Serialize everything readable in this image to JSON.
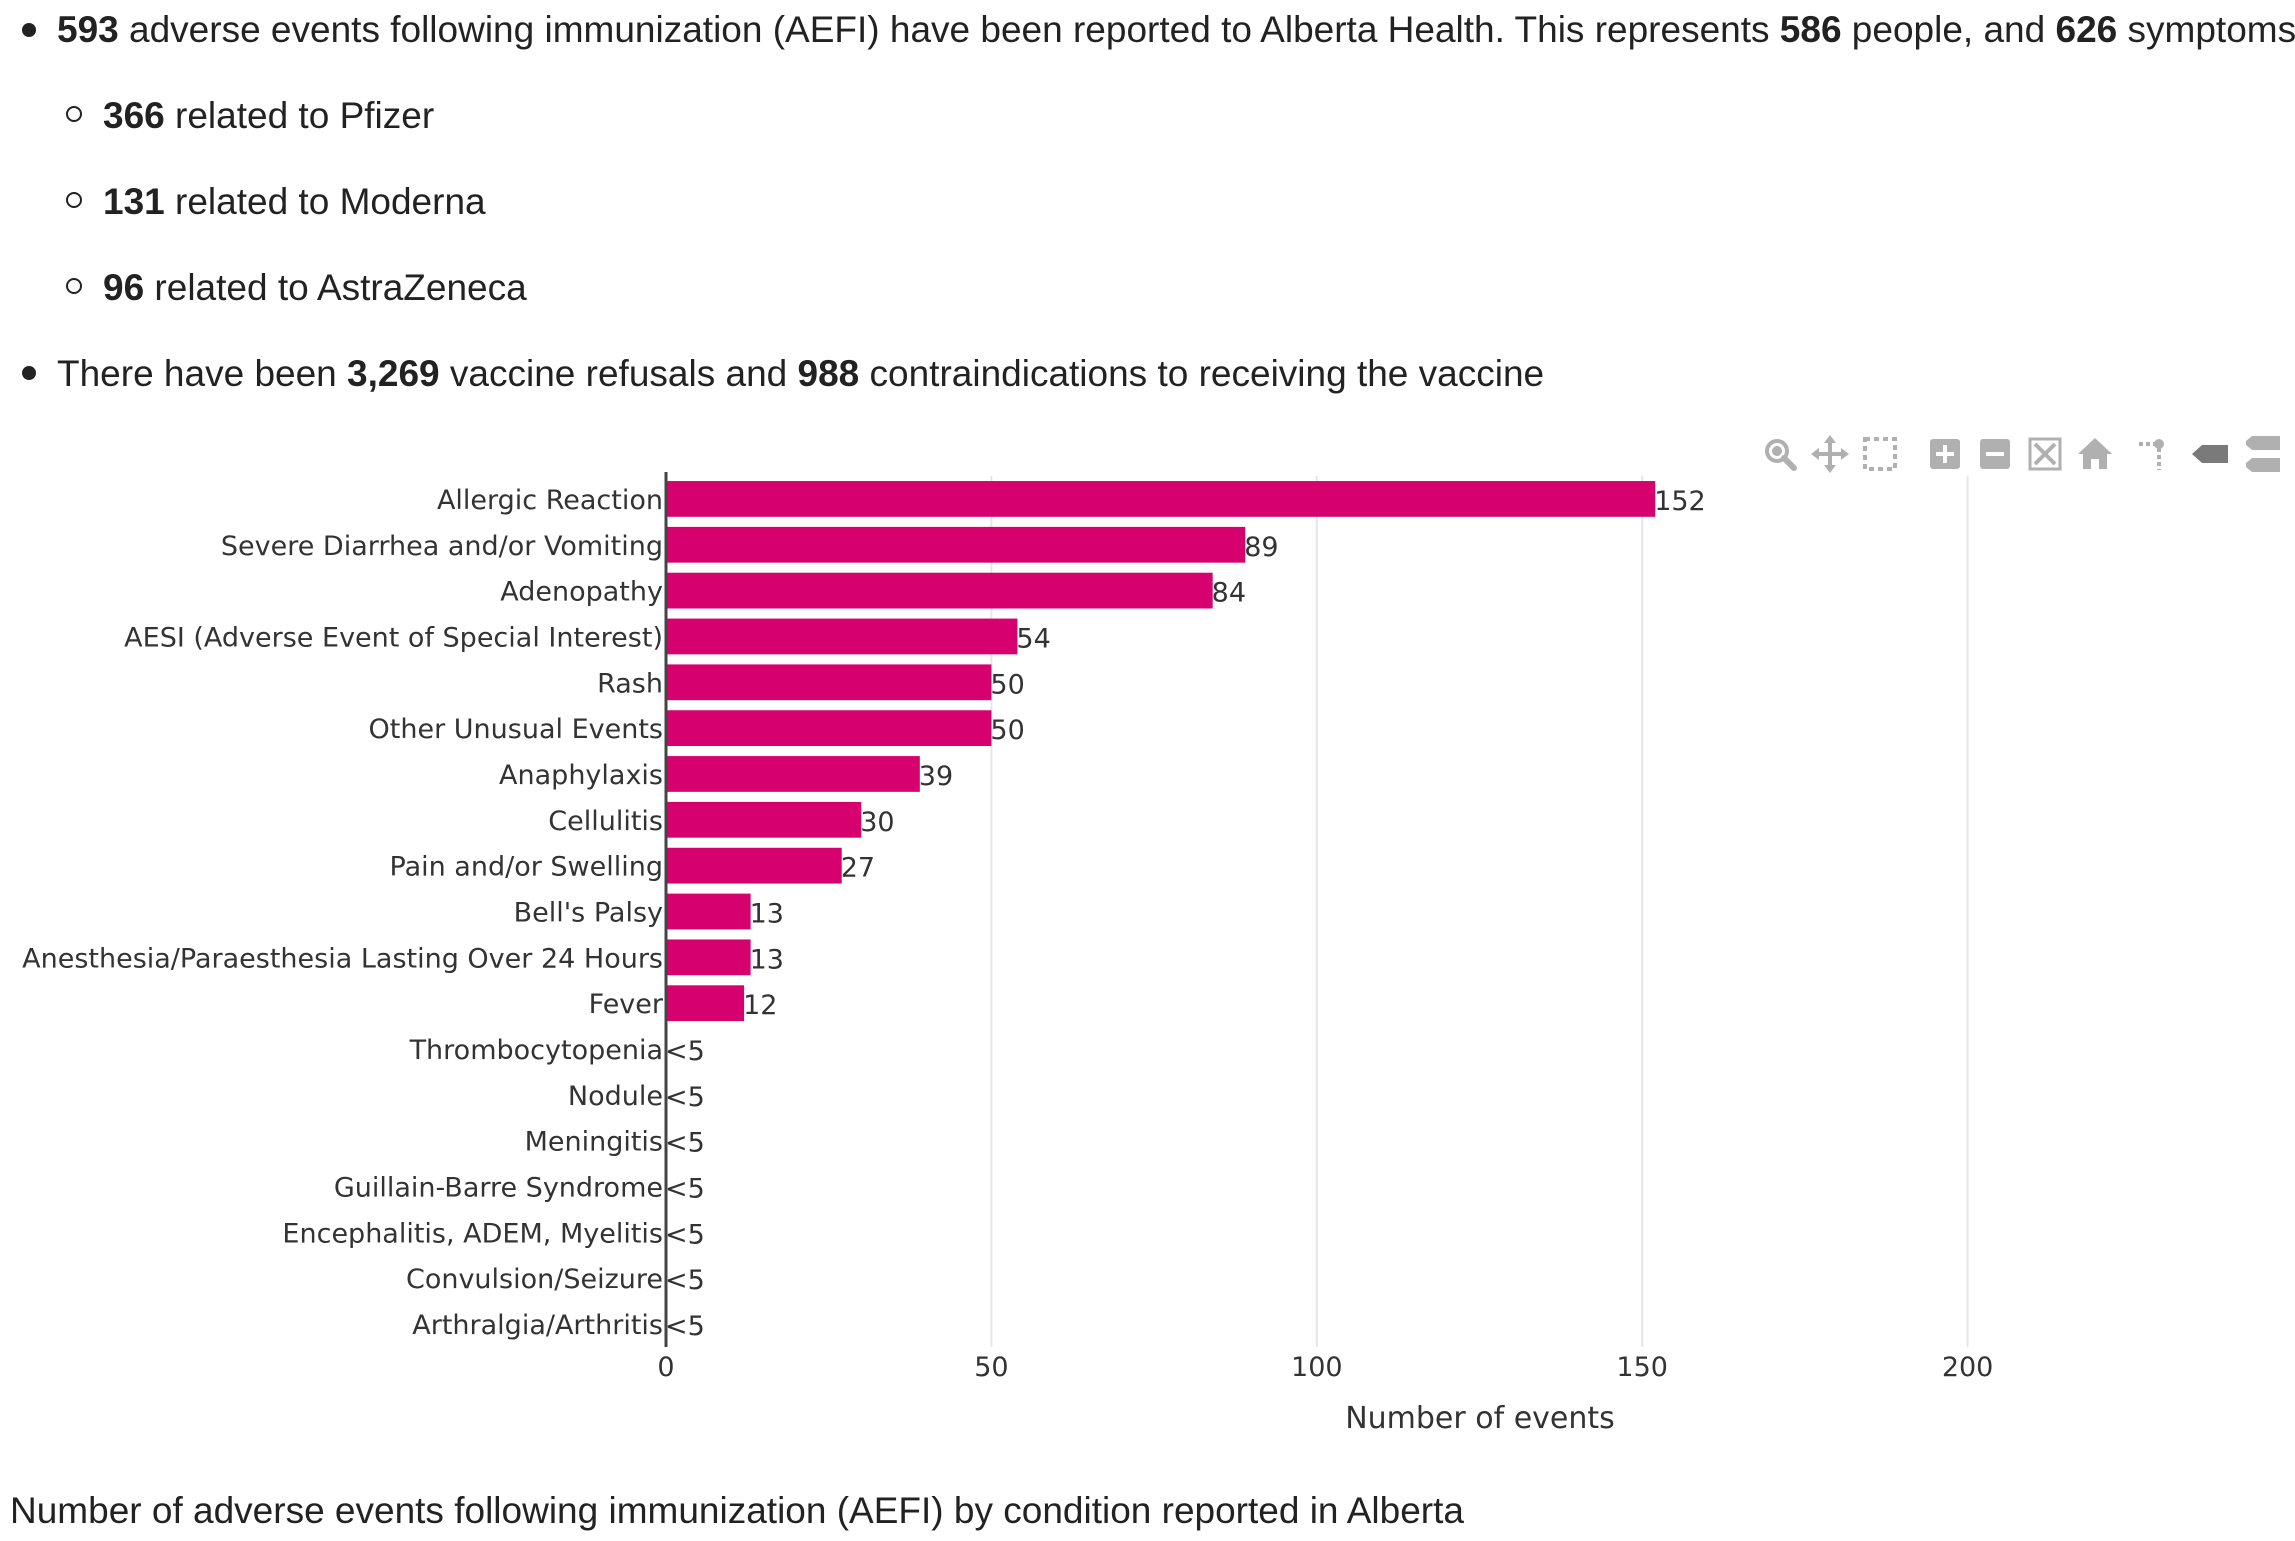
{
  "bullets": {
    "b1": {
      "n1": "593",
      "t1": " adverse events following immunization (AEFI) have been reported to Alberta Health. This represents ",
      "n2": "586",
      "t2": " people, and ",
      "n3": "626",
      "t3": " symptoms."
    },
    "sub": [
      {
        "n": "366",
        "t": " related to Pfizer"
      },
      {
        "n": "131",
        "t": " related to Moderna"
      },
      {
        "n": "96",
        "t": " related to AstraZeneca"
      }
    ],
    "b2": {
      "t1": "There have been ",
      "n1": "3,269",
      "t2": " vaccine refusals and ",
      "n2": "988",
      "t3": " contraindications to receiving the vaccine"
    }
  },
  "colors": {
    "bar": "#d6006f",
    "axis": "#444444",
    "grid": "#e6e6e6",
    "text": "#333333",
    "toolbar_icon": "#b0b0b0"
  },
  "toolbar": {
    "icons": [
      "zoom-icon",
      "pan-icon",
      "box-select-icon",
      "zoom-in-icon",
      "zoom-out-icon",
      "autoscale-icon",
      "reset-axes-icon",
      "spike-lines-icon",
      "hover-closest-icon",
      "hover-compare-icon"
    ]
  },
  "chart_data": {
    "type": "bar",
    "orientation": "horizontal",
    "categories": [
      "Allergic Reaction",
      "Severe Diarrhea and/or Vomiting",
      "Adenopathy",
      "AESI (Adverse Event of Special Interest)",
      "Rash",
      "Other Unusual Events",
      "Anaphylaxis",
      "Cellulitis",
      "Pain and/or Swelling",
      "Bell's Palsy",
      "Anesthesia/Paraesthesia Lasting Over 24 Hours",
      "Fever",
      "Thrombocytopenia",
      "Nodule",
      "Meningitis",
      "Guillain-Barre Syndrome",
      "Encephalitis, ADEM, Myelitis",
      "Convulsion/Seizure",
      "Arthralgia/Arthritis"
    ],
    "values": [
      152,
      89,
      84,
      54,
      50,
      50,
      39,
      30,
      27,
      13,
      13,
      12,
      0,
      0,
      0,
      0,
      0,
      0,
      0
    ],
    "value_labels": [
      "152",
      "89",
      "84",
      "54",
      "50",
      "50",
      "39",
      "30",
      "27",
      "13",
      "13",
      "12",
      "<5",
      "<5",
      "<5",
      "<5",
      "<5",
      "<5",
      "<5"
    ],
    "xlabel": "Number of events",
    "xticks": [
      "0",
      "50",
      "100",
      "150",
      "200"
    ],
    "xtick_values": [
      0,
      50,
      100,
      150,
      200
    ],
    "xlim": [
      0,
      218.5
    ],
    "grid": true
  },
  "caption": "Number of adverse events following immunization (AEFI) by condition reported in Alberta"
}
